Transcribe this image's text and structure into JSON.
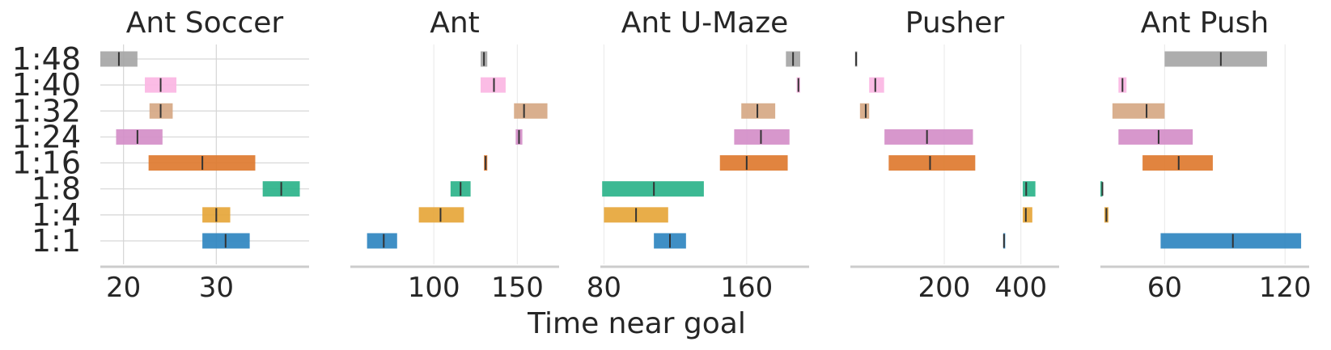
{
  "chart_data": {
    "type": "bar",
    "xlabel": "Time near goal",
    "ylabel": "",
    "categories": [
      "1:48",
      "1:40",
      "1:32",
      "1:24",
      "1:16",
      "1:8",
      "1:4",
      "1:1"
    ],
    "grid": true,
    "colors": {
      "1:48": "#a6a6a6",
      "1:40": "#fbb6e3",
      "1:32": "#d6a884",
      "1:24": "#d48ec8",
      "1:16": "#de7a2f",
      "1:8": "#2bb38a",
      "1:4": "#e6a63a",
      "1:1": "#2f86c0"
    },
    "panels": [
      {
        "title": "Ant Soccer",
        "xlim": [
          17.5,
          40
        ],
        "xticks": [
          20,
          30
        ],
        "xtick_labels": [
          "20",
          "30"
        ],
        "hgrid": true,
        "values": [
          {
            "category": "1:48",
            "mean": 19.5,
            "low": 17.5,
            "high": 21.5
          },
          {
            "category": "1:40",
            "mean": 24.0,
            "low": 22.3,
            "high": 25.7
          },
          {
            "category": "1:32",
            "mean": 24.0,
            "low": 22.8,
            "high": 25.3
          },
          {
            "category": "1:24",
            "mean": 21.5,
            "low": 19.2,
            "high": 24.2
          },
          {
            "category": "1:16",
            "mean": 28.5,
            "low": 22.7,
            "high": 34.2
          },
          {
            "category": "1:8",
            "mean": 37.0,
            "low": 35.0,
            "high": 39.0
          },
          {
            "category": "1:4",
            "mean": 30.0,
            "low": 28.5,
            "high": 31.5
          },
          {
            "category": "1:1",
            "mean": 31.0,
            "low": 28.5,
            "high": 33.6
          }
        ]
      },
      {
        "title": "Ant",
        "xlim": [
          50,
          175
        ],
        "xticks": [
          100,
          150
        ],
        "xtick_labels": [
          "100",
          "150"
        ],
        "hgrid": false,
        "values": [
          {
            "category": "1:48",
            "mean": 130,
            "low": 128,
            "high": 132
          },
          {
            "category": "1:40",
            "mean": 136,
            "low": 128,
            "high": 143
          },
          {
            "category": "1:32",
            "mean": 154,
            "low": 148,
            "high": 168
          },
          {
            "category": "1:24",
            "mean": 151,
            "low": 149,
            "high": 153
          },
          {
            "category": "1:16",
            "mean": 131,
            "low": 130,
            "high": 132
          },
          {
            "category": "1:8",
            "mean": 116,
            "low": 110,
            "high": 122
          },
          {
            "category": "1:4",
            "mean": 104,
            "low": 91,
            "high": 118
          },
          {
            "category": "1:1",
            "mean": 70,
            "low": 60,
            "high": 78
          }
        ]
      },
      {
        "title": "Ant U-Maze",
        "xlim": [
          78,
          195
        ],
        "xticks": [
          80,
          160
        ],
        "xtick_labels": [
          "80",
          "160"
        ],
        "hgrid": false,
        "values": [
          {
            "category": "1:48",
            "mean": 186,
            "low": 182,
            "high": 190
          },
          {
            "category": "1:40",
            "mean": 189,
            "low": 188,
            "high": 190
          },
          {
            "category": "1:32",
            "mean": 166,
            "low": 157,
            "high": 176
          },
          {
            "category": "1:24",
            "mean": 168,
            "low": 153,
            "high": 184
          },
          {
            "category": "1:16",
            "mean": 160,
            "low": 145,
            "high": 183
          },
          {
            "category": "1:8",
            "mean": 108,
            "low": 79,
            "high": 136
          },
          {
            "category": "1:4",
            "mean": 98,
            "low": 80,
            "high": 116
          },
          {
            "category": "1:1",
            "mean": 117,
            "low": 108,
            "high": 126
          }
        ]
      },
      {
        "title": "Pusher",
        "xlim": [
          -45,
          500
        ],
        "xticks": [
          200,
          400
        ],
        "xtick_labels": [
          "200",
          "400"
        ],
        "hgrid": false,
        "values": [
          {
            "category": "1:48",
            "mean": -30,
            "low": -33,
            "high": -27
          },
          {
            "category": "1:40",
            "mean": 20,
            "low": 4,
            "high": 43
          },
          {
            "category": "1:32",
            "mean": -5,
            "low": -20,
            "high": 4
          },
          {
            "category": "1:24",
            "mean": 155,
            "low": 44,
            "high": 275
          },
          {
            "category": "1:16",
            "mean": 163,
            "low": 55,
            "high": 281
          },
          {
            "category": "1:8",
            "mean": 414,
            "low": 405,
            "high": 438
          },
          {
            "category": "1:4",
            "mean": 413,
            "low": 405,
            "high": 430
          },
          {
            "category": "1:1",
            "mean": 356,
            "low": 354,
            "high": 359
          }
        ]
      },
      {
        "title": "Ant Push",
        "xlim": [
          28,
          132
        ],
        "xticks": [
          60,
          120
        ],
        "xtick_labels": [
          "60",
          "120"
        ],
        "hgrid": false,
        "values": [
          {
            "category": "1:48",
            "mean": 88,
            "low": 60,
            "high": 111
          },
          {
            "category": "1:40",
            "mean": 39,
            "low": 37,
            "high": 41
          },
          {
            "category": "1:32",
            "mean": 51,
            "low": 34,
            "high": 60
          },
          {
            "category": "1:24",
            "mean": 57,
            "low": 37,
            "high": 74
          },
          {
            "category": "1:16",
            "mean": 67,
            "low": 49,
            "high": 84
          },
          {
            "category": "1:8",
            "mean": 29,
            "low": 28,
            "high": 29
          },
          {
            "category": "1:4",
            "mean": 31,
            "low": 30,
            "high": 32
          },
          {
            "category": "1:1",
            "mean": 94,
            "low": 58,
            "high": 128
          }
        ]
      }
    ]
  }
}
